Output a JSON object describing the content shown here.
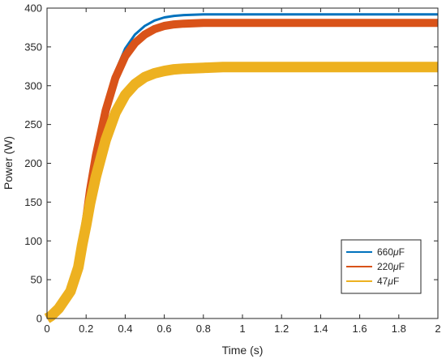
{
  "chart_data": {
    "type": "line",
    "title": "",
    "xlabel": "Time (s)",
    "ylabel": "Power (W)",
    "xlim": [
      0,
      2
    ],
    "ylim": [
      0,
      400
    ],
    "xticks": [
      0,
      0.2,
      0.4,
      0.6,
      0.8,
      1,
      1.2,
      1.4,
      1.6,
      1.8,
      2
    ],
    "xtick_labels": [
      "0",
      "0.2",
      "0.4",
      "0.6",
      "0.8",
      "1",
      "1.2",
      "1.4",
      "1.6",
      "1.8",
      "2"
    ],
    "yticks": [
      0,
      50,
      100,
      150,
      200,
      250,
      300,
      350,
      400
    ],
    "ytick_labels": [
      "0",
      "50",
      "100",
      "150",
      "200",
      "250",
      "300",
      "350",
      "400"
    ],
    "grid": false,
    "legend_position": "bottom-right",
    "series": [
      {
        "name": "660 μF",
        "color": "#0072BD",
        "ripple_w": 3,
        "x": [
          0,
          0.02,
          0.06,
          0.12,
          0.16,
          0.18,
          0.2,
          0.22,
          0.25,
          0.3,
          0.35,
          0.4,
          0.45,
          0.5,
          0.55,
          0.6,
          0.65,
          0.7,
          0.8,
          0.9,
          1.0,
          1.2,
          1.4,
          1.6,
          1.8,
          2.0
        ],
        "y": [
          0,
          3,
          13,
          35,
          68,
          98,
          130,
          168,
          215,
          275,
          318,
          348,
          366,
          377,
          384,
          388,
          390,
          391,
          392,
          392,
          392,
          392,
          392,
          392,
          392,
          392
        ]
      },
      {
        "name": "220 μF",
        "color": "#D95319",
        "ripple_w": 10,
        "x": [
          0,
          0.02,
          0.06,
          0.12,
          0.16,
          0.18,
          0.2,
          0.22,
          0.25,
          0.3,
          0.35,
          0.4,
          0.45,
          0.5,
          0.55,
          0.6,
          0.65,
          0.7,
          0.8,
          0.9,
          1.0,
          1.2,
          1.4,
          1.6,
          1.8,
          2.0
        ],
        "y": [
          0,
          3,
          13,
          35,
          68,
          98,
          128,
          165,
          210,
          268,
          310,
          338,
          355,
          366,
          373,
          377,
          379,
          380,
          381,
          381,
          381,
          381,
          381,
          381,
          381,
          381
        ]
      },
      {
        "name": "47 μF",
        "color": "#EDB120",
        "ripple_w": 13,
        "x": [
          0,
          0.02,
          0.06,
          0.12,
          0.16,
          0.18,
          0.2,
          0.22,
          0.25,
          0.3,
          0.35,
          0.4,
          0.45,
          0.5,
          0.55,
          0.6,
          0.65,
          0.7,
          0.8,
          0.9,
          1.0,
          1.2,
          1.4,
          1.6,
          1.8,
          2.0
        ],
        "y": [
          0,
          3,
          13,
          35,
          66,
          95,
          120,
          148,
          183,
          230,
          265,
          288,
          302,
          311,
          316,
          319,
          321,
          322,
          323,
          324,
          324,
          324,
          324,
          324,
          324,
          324
        ]
      }
    ],
    "legend": [
      {
        "prefix": "660",
        "unit": "μ",
        "suffix": "F"
      },
      {
        "prefix": "220",
        "unit": "μ",
        "suffix": "F"
      },
      {
        "prefix": "47",
        "unit": "μ",
        "suffix": "F"
      }
    ]
  }
}
